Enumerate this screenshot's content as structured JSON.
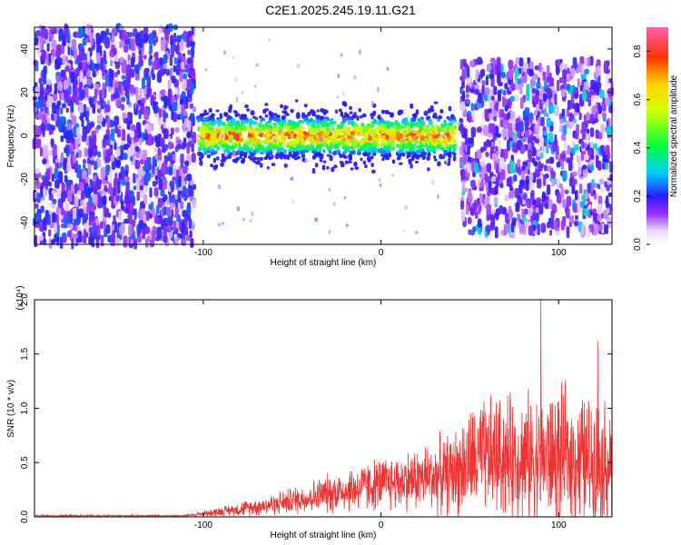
{
  "figure": {
    "title": "C2E1.2025.245.19.11.G21"
  },
  "chart_data": [
    {
      "type": "heatmap",
      "xlabel": "Height of straight line (km)",
      "ylabel": "Frequency (Hz)",
      "xlim": [
        -195,
        130
      ],
      "ylim": [
        -50,
        50
      ],
      "xticks": [
        -100,
        0,
        100
      ],
      "xtick_labels": [
        "-100",
        "0",
        "100"
      ],
      "yticks": [
        -40,
        -20,
        0,
        20,
        40
      ],
      "ytick_labels": [
        "-40",
        "-20",
        "0",
        "20",
        "40"
      ],
      "colorbar": {
        "label": "Normalized spectral amplitude",
        "range": [
          0,
          0.9
        ],
        "ticks": [
          0.0,
          0.2,
          0.4,
          0.6,
          0.8
        ],
        "tick_labels": [
          "0.0",
          "0.2",
          "0.4",
          "0.6",
          "0.8"
        ]
      },
      "regions": [
        {
          "x_range": [
            -195,
            -105
          ],
          "description_level": "scattered noise",
          "amplitude": [
            0.05,
            0.25
          ]
        },
        {
          "x_range": [
            -103,
            42
          ],
          "center_freq_hz": 0,
          "band_halfwidth_hz": 6,
          "amplitude": [
            0.2,
            0.9
          ]
        },
        {
          "x_range": [
            45,
            130
          ],
          "description_level": "broad noise",
          "amplitude": [
            0.05,
            0.35
          ]
        }
      ]
    },
    {
      "type": "line",
      "xlabel": "Height of straight line (km)",
      "ylabel": "SNR (10 * v/v)",
      "multiplier_label": "(x10⁴)",
      "xlim": [
        -195,
        130
      ],
      "ylim": [
        0,
        2.0
      ],
      "xticks": [
        -100,
        0,
        100
      ],
      "xtick_labels": [
        "-100",
        "0",
        "100"
      ],
      "yticks": [
        0.0,
        0.5,
        1.0,
        1.5,
        2.0
      ],
      "ytick_labels": [
        "0.0",
        "0.5",
        "1.0",
        "1.5",
        "2.0"
      ],
      "series": [
        {
          "name": "SNR",
          "color": "#ee3333",
          "envelope_x": [
            -195,
            -110,
            -100,
            -80,
            -60,
            -40,
            -20,
            0,
            20,
            40,
            50,
            60,
            80,
            100,
            130
          ],
          "envelope_mean": [
            0.01,
            0.01,
            0.03,
            0.07,
            0.12,
            0.18,
            0.25,
            0.3,
            0.35,
            0.4,
            0.5,
            0.55,
            0.55,
            0.55,
            0.5
          ],
          "envelope_amp": [
            0.01,
            0.01,
            0.03,
            0.08,
            0.12,
            0.18,
            0.25,
            0.3,
            0.35,
            0.45,
            0.6,
            0.65,
            0.7,
            0.75,
            0.7
          ],
          "peaks": [
            {
              "x": 90,
              "y": 2.0
            },
            {
              "x": 122,
              "y": 1.62
            }
          ]
        }
      ]
    }
  ]
}
